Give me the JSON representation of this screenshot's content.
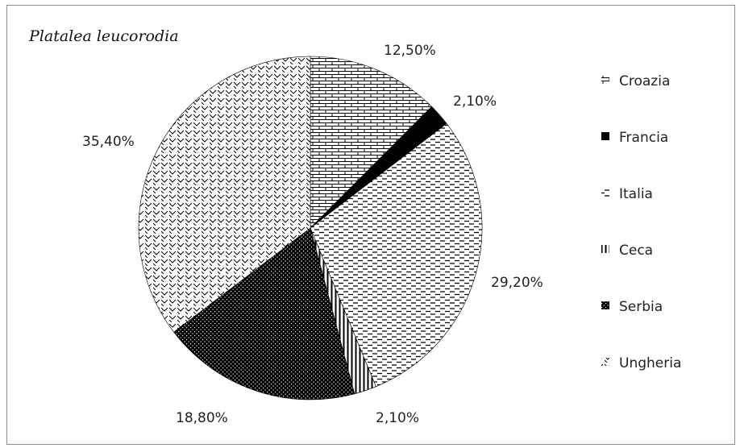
{
  "chart_data": {
    "type": "pie",
    "title": "Platalea leucorodia",
    "categories": [
      "Croazia",
      "Francia",
      "Italia",
      "Ceca",
      "Serbia",
      "Ungheria"
    ],
    "values": [
      12.5,
      2.1,
      29.2,
      2.1,
      18.8,
      35.4
    ],
    "labels": [
      "12,50%",
      "2,10%",
      "29,20%",
      "2,10%",
      "18,80%",
      "35,40%"
    ],
    "patterns": [
      "brick",
      "solid-black",
      "dashes",
      "vertical-lines",
      "dots-dark",
      "zigzag"
    ],
    "legend_position": "right"
  }
}
